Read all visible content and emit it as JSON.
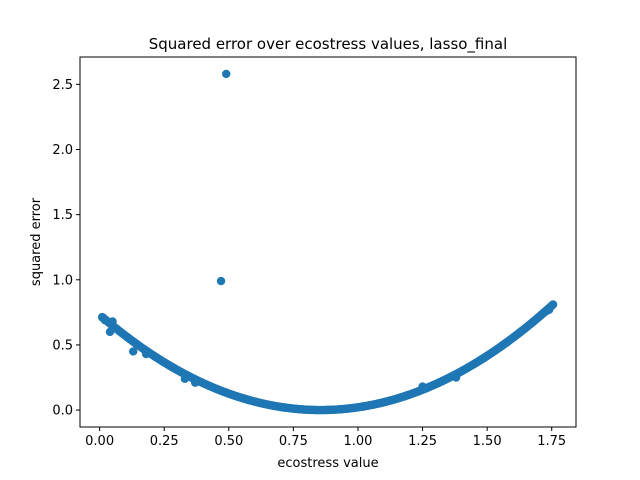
{
  "chart_data": {
    "type": "scatter",
    "title": "Squared error over ecostress values, lasso_final",
    "xlabel": "ecostress value",
    "ylabel": "squared error",
    "xlim": [
      -0.076,
      1.844
    ],
    "ylim": [
      -0.13,
      2.71
    ],
    "xticks": [
      0.0,
      0.25,
      0.5,
      0.75,
      1.0,
      1.25,
      1.5,
      1.75
    ],
    "xtick_labels": [
      "0.00",
      "0.25",
      "0.50",
      "0.75",
      "1.00",
      "1.25",
      "1.50",
      "1.75"
    ],
    "yticks": [
      0.0,
      0.5,
      1.0,
      1.5,
      2.0,
      2.5
    ],
    "ytick_labels": [
      "0.0",
      "0.5",
      "1.0",
      "1.5",
      "2.0",
      "2.5"
    ],
    "grid": false,
    "marker_color": "#1f77b4",
    "curve": {
      "x_min": 0.01,
      "x_max": 1.755,
      "vertex_x": 0.855,
      "coef": 1.0
    },
    "outliers": [
      {
        "x": 0.49,
        "y": 2.58
      },
      {
        "x": 0.47,
        "y": 0.99
      }
    ],
    "extra_points": [
      {
        "x": 0.01,
        "y": 0.71
      },
      {
        "x": 0.02,
        "y": 0.69
      },
      {
        "x": 0.05,
        "y": 0.68
      },
      {
        "x": 0.04,
        "y": 0.6
      },
      {
        "x": 0.13,
        "y": 0.45
      },
      {
        "x": 0.18,
        "y": 0.43
      },
      {
        "x": 0.33,
        "y": 0.24
      },
      {
        "x": 0.37,
        "y": 0.21
      },
      {
        "x": 1.25,
        "y": 0.18
      },
      {
        "x": 1.38,
        "y": 0.25
      },
      {
        "x": 1.48,
        "y": 0.39
      },
      {
        "x": 1.73,
        "y": 0.76
      },
      {
        "x": 1.74,
        "y": 0.77
      },
      {
        "x": 1.755,
        "y": 0.81
      }
    ]
  }
}
